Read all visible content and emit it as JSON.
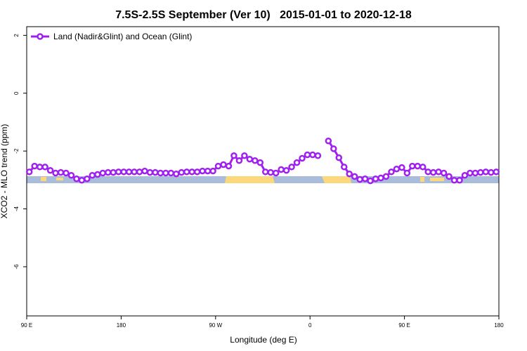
{
  "chart_data": {
    "type": "line",
    "title": "7.5S-2.5S September (Ver 10)   2015-01-01 to 2020-12-18",
    "xlabel": "Longitude (deg E)",
    "ylabel": "XCO2 - MLO trend (ppm)",
    "xlim": [
      90,
      540
    ],
    "ylim": [
      -7.7,
      2.3
    ],
    "xticks": [
      {
        "value": 90,
        "label": "90 E"
      },
      180,
      {
        "value": 270,
        "label": "90 W"
      },
      {
        "value": 360,
        "label": "0"
      },
      {
        "value": 450,
        "label": "90 E"
      },
      {
        "value": 540,
        "label": "180"
      }
    ],
    "yticks": [
      -6,
      -4,
      -2,
      0,
      2
    ],
    "legend": "top-left",
    "x": [
      92.5,
      97.5,
      102.5,
      107.5,
      112.5,
      117.5,
      122.5,
      127.5,
      132.5,
      137.5,
      142.5,
      147.5,
      152.5,
      157.5,
      162.5,
      167.5,
      172.5,
      177.5,
      182.5,
      187.5,
      192.5,
      197.5,
      202.5,
      207.5,
      212.5,
      217.5,
      222.5,
      227.5,
      232.5,
      237.5,
      242.5,
      247.5,
      252.5,
      257.5,
      262.5,
      267.5,
      272.5,
      277.5,
      282.5,
      287.5,
      292.5,
      297.5,
      302.5,
      307.5,
      312.5,
      317.5,
      322.5,
      327.5,
      332.5,
      337.5,
      342.5,
      347.5,
      352.5,
      357.5,
      362.5,
      367.5,
      372.5,
      377.5,
      382.5,
      387.5,
      392.5,
      397.5,
      402.5,
      407.5,
      412.5,
      417.5,
      422.5,
      427.5,
      432.5,
      437.5,
      442.5,
      447.5,
      452.5,
      457.5,
      462.5,
      467.5,
      472.5,
      477.5,
      482.5,
      487.5,
      492.5,
      497.5,
      502.5,
      507.5,
      512.5,
      517.5,
      522.5,
      527.5,
      532.5,
      537.5
    ],
    "series": [
      {
        "name": "Land (Nadir&Glint) and Ocean (Glint)",
        "color": "#a020f0",
        "values": [
          -2.72,
          -2.52,
          -2.55,
          -2.55,
          -2.67,
          -2.76,
          -2.74,
          -2.76,
          -2.84,
          -2.96,
          -3.01,
          -2.96,
          -2.84,
          -2.81,
          -2.76,
          -2.74,
          -2.74,
          -2.72,
          -2.72,
          -2.72,
          -2.72,
          -2.72,
          -2.69,
          -2.74,
          -2.74,
          -2.76,
          -2.76,
          -2.76,
          -2.79,
          -2.74,
          -2.72,
          -2.72,
          -2.72,
          -2.69,
          -2.69,
          -2.69,
          -2.52,
          -2.47,
          -2.52,
          -2.16,
          -2.33,
          -2.16,
          -2.28,
          -2.33,
          -2.4,
          -2.72,
          -2.74,
          -2.76,
          -2.64,
          -2.67,
          -2.55,
          -2.4,
          -2.25,
          -2.13,
          -2.13,
          -2.16,
          null,
          -1.65,
          -1.92,
          -2.23,
          -2.55,
          -2.79,
          -2.88,
          -2.98,
          -2.96,
          -3.03,
          -2.96,
          -2.93,
          -2.88,
          -2.72,
          -2.62,
          -2.57,
          -2.76,
          -2.52,
          -2.52,
          -2.55,
          -2.72,
          -2.74,
          -2.72,
          -2.76,
          -2.88,
          -3.01,
          -3.01,
          -2.84,
          -2.76,
          -2.76,
          -2.74,
          -2.72,
          -2.74,
          -2.72
        ]
      }
    ]
  }
}
